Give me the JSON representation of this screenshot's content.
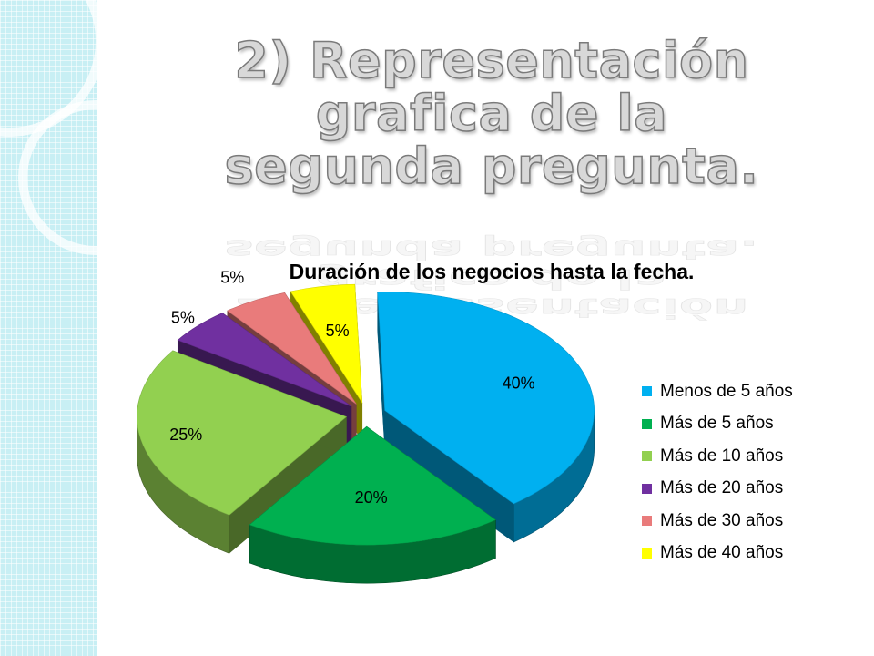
{
  "slide": {
    "title": "2) Representación grafica de la segunda pregunta.",
    "title_line1": "2) Representación grafica de la",
    "title_line2": "segunda pregunta."
  },
  "chart_data": {
    "type": "pie",
    "title": "Duración de los negocios hasta la fecha.",
    "categories": [
      "Menos de 5 años",
      "Más de 5 años",
      "Más de 10 años",
      "Más de 20 años",
      "Más de 30 años",
      "Más de 40 años"
    ],
    "values": [
      40,
      20,
      25,
      5,
      5,
      5
    ],
    "labels": [
      "40%",
      "20%",
      "25%",
      "5%",
      "5%",
      "5%"
    ],
    "colors": [
      "#00b0f0",
      "#00b050",
      "#92d050",
      "#7030a0",
      "#e97b7b",
      "#ffff00"
    ],
    "style": "3d exploded",
    "legend_position": "right"
  }
}
